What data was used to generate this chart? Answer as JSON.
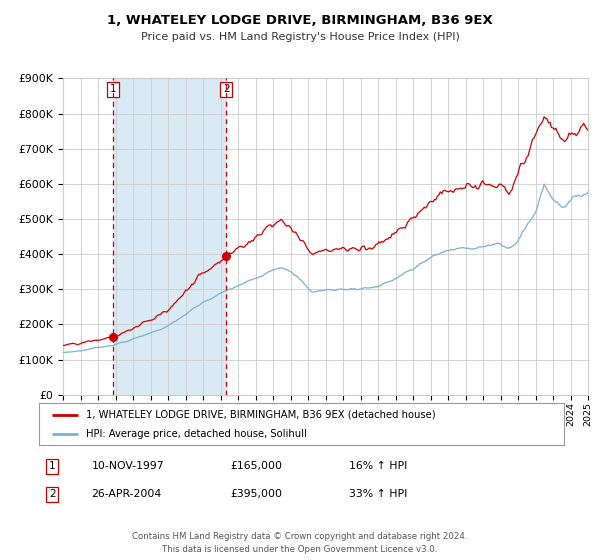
{
  "title": "1, WHATELEY LODGE DRIVE, BIRMINGHAM, B36 9EX",
  "subtitle": "Price paid vs. HM Land Registry's House Price Index (HPI)",
  "legend_line1": "1, WHATELEY LODGE DRIVE, BIRMINGHAM, B36 9EX (detached house)",
  "legend_line2": "HPI: Average price, detached house, Solihull",
  "sale1_date": "10-NOV-1997",
  "sale1_price": 165000,
  "sale1_hpi": "16% ↑ HPI",
  "sale2_date": "26-APR-2004",
  "sale2_price": 395000,
  "sale2_hpi": "33% ↑ HPI",
  "footer": "Contains HM Land Registry data © Crown copyright and database right 2024.\nThis data is licensed under the Open Government Licence v3.0.",
  "red_line_color": "#cc0000",
  "blue_line_color": "#7ab0d4",
  "shaded_region_color": "#daeaf5",
  "vline_color": "#cc0000",
  "point_color": "#cc0000",
  "bg_color": "#ffffff",
  "grid_color": "#cccccc",
  "ylim": [
    0,
    900000
  ],
  "sale1_year": 1997.86,
  "sale2_year": 2004.32
}
